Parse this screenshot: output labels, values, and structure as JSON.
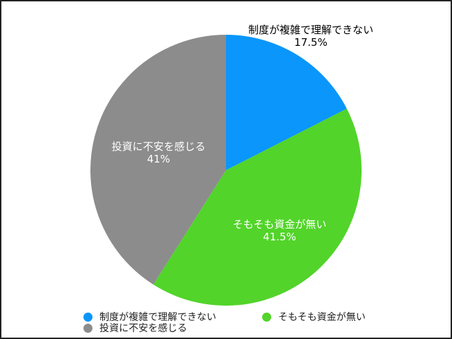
{
  "chart_data": {
    "type": "pie",
    "start_angle": "top, clockwise",
    "slices": [
      {
        "label": "制度が複雑で理解できない",
        "value": 17.5,
        "value_label": "17.5%",
        "color": "#0a96fa",
        "label_color": "#000000"
      },
      {
        "label": "そもそも資金が無い",
        "value": 41.5,
        "value_label": "41.5%",
        "color": "#52d42a",
        "label_color": "#ffffff"
      },
      {
        "label": "投資に不安を感じる",
        "value": 41,
        "value_label": "41%",
        "color": "#8c8c8c",
        "label_color": "#ffffff"
      }
    ],
    "legend_position": "bottom"
  }
}
